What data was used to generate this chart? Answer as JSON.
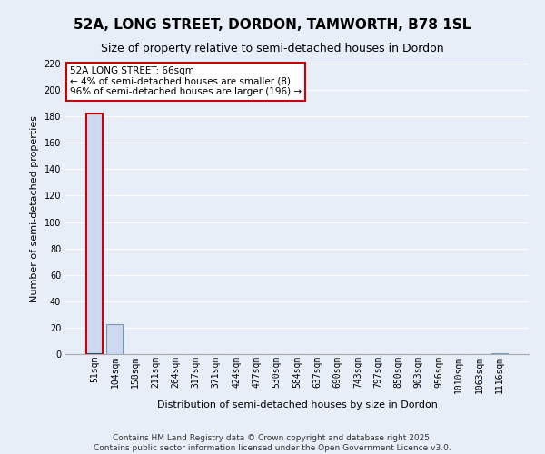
{
  "title": "52A, LONG STREET, DORDON, TAMWORTH, B78 1SL",
  "subtitle": "Size of property relative to semi-detached houses in Dordon",
  "xlabel": "Distribution of semi-detached houses by size in Dordon",
  "ylabel": "Number of semi-detached properties",
  "bar_labels": [
    "51sqm",
    "104sqm",
    "158sqm",
    "211sqm",
    "264sqm",
    "317sqm",
    "371sqm",
    "424sqm",
    "477sqm",
    "530sqm",
    "584sqm",
    "637sqm",
    "690sqm",
    "743sqm",
    "797sqm",
    "850sqm",
    "903sqm",
    "956sqm",
    "1010sqm",
    "1063sqm",
    "1116sqm"
  ],
  "bar_values": [
    182,
    23,
    0,
    0,
    0,
    0,
    0,
    0,
    0,
    0,
    0,
    0,
    0,
    0,
    0,
    0,
    0,
    0,
    0,
    0,
    1
  ],
  "highlight_bar_index": 0,
  "bar_color": "#ccd9ee",
  "highlight_outline": "#cc0000",
  "normal_outline": "#7799bb",
  "annotation_text": "52A LONG STREET: 66sqm\n← 4% of semi-detached houses are smaller (8)\n96% of semi-detached houses are larger (196) →",
  "annotation_box_color": "#ffffff",
  "annotation_box_edge": "#cc0000",
  "ylim_max": 220,
  "yticks": [
    0,
    20,
    40,
    60,
    80,
    100,
    120,
    140,
    160,
    180,
    200,
    220
  ],
  "footer_line1": "Contains HM Land Registry data © Crown copyright and database right 2025.",
  "footer_line2": "Contains public sector information licensed under the Open Government Licence v3.0.",
  "bg_color": "#e8eef8",
  "grid_color": "#ffffff",
  "title_fontsize": 11,
  "subtitle_fontsize": 9,
  "axis_label_fontsize": 8,
  "tick_fontsize": 7,
  "footer_fontsize": 6.5
}
